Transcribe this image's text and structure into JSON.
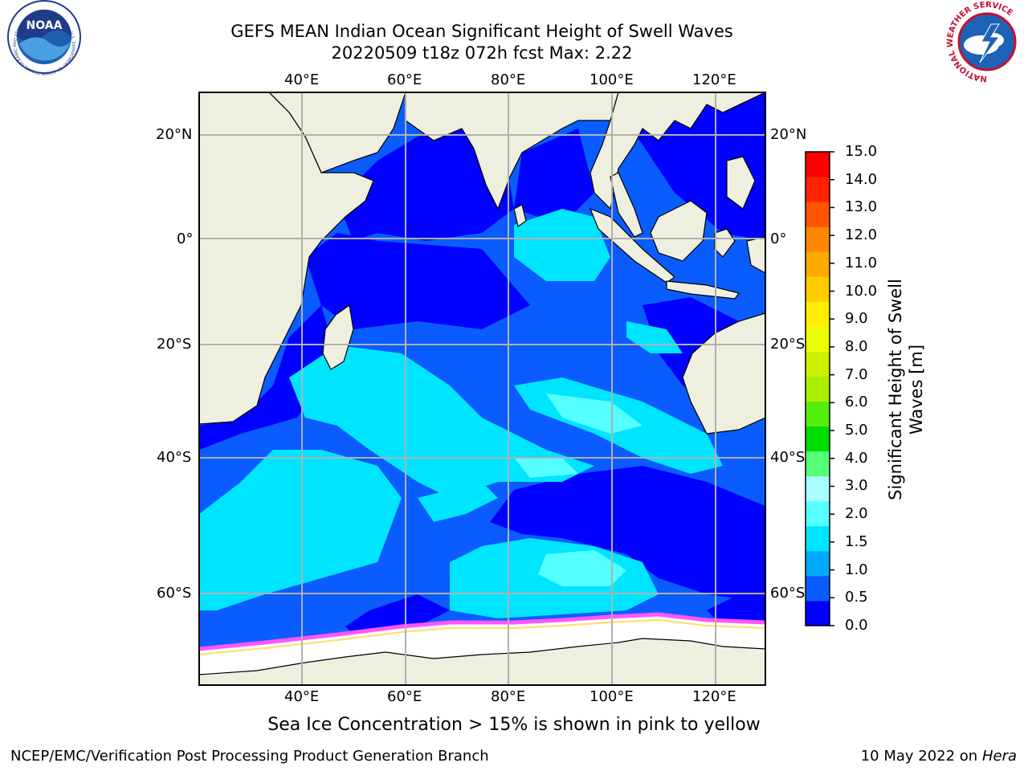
{
  "title_line1": "GEFS MEAN Indian Ocean Significant Height of Swell Waves",
  "title_line2": "20220509 t18z 072h fcst   Max: 2.22",
  "lon_labels": [
    "40°E",
    "60°E",
    "80°E",
    "100°E",
    "120°E"
  ],
  "lat_labels": [
    "20°N",
    "0°",
    "20°S",
    "40°S",
    "60°S"
  ],
  "colorbar": {
    "label": "Significant Height of Swell Waves [m]",
    "ticks": [
      "0.0",
      "0.5",
      "1.0",
      "1.5",
      "2.0",
      "3.0",
      "4.0",
      "5.0",
      "6.0",
      "7.0",
      "8.0",
      "9.0",
      "10.0",
      "11.0",
      "12.0",
      "13.0",
      "14.0",
      "15.0"
    ],
    "colors": [
      "#0000ff",
      "#0a5cff",
      "#00aaff",
      "#00e5ff",
      "#55ffff",
      "#aaffff",
      "#55ff77",
      "#00dd00",
      "#55ee11",
      "#aaee00",
      "#ccf000",
      "#eeff00",
      "#ffee00",
      "#ffcc00",
      "#ffaa00",
      "#ff8800",
      "#ff5500",
      "#ff2200",
      "#ff0000"
    ]
  },
  "sea_ice_note": "Sea Ice Concentration > 15% is shown in pink to yellow",
  "credit": "NCEP/EMC/Verification Post Processing Product Generation Branch",
  "date": "10 May 2022 on",
  "host": "Hera",
  "logos": {
    "noaa_text": "NOAA",
    "noaa_ring": "NATIONAL OCEANIC AND ATMOSPHERIC ADMINISTRATION · U.S. DEPARTMENT OF COMMERCE",
    "nws_ring": "NATIONAL WEATHER SERVICE"
  },
  "colors": {
    "land": "#efefdf",
    "ocean_low": "#0000ff",
    "ocean_mid": "#0a5cff",
    "ocean_high": "#00e5ff",
    "ice": "#ffffff",
    "ice_edge": "#ff55ff"
  }
}
